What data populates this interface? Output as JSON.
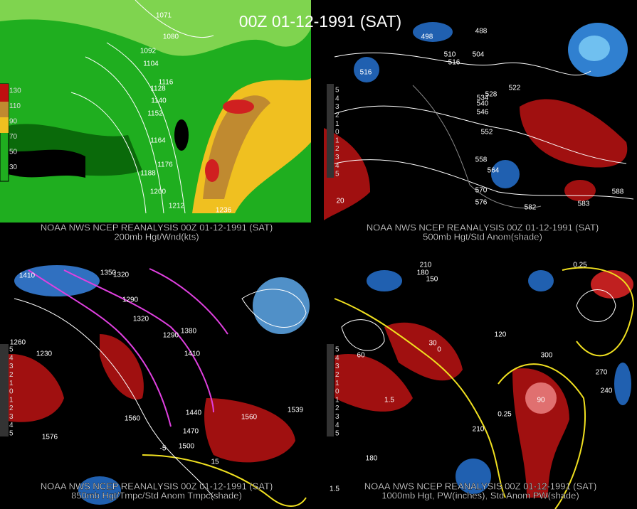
{
  "title": "00Z 01-12-1991 (SAT)",
  "panels": [
    {
      "caption": [
        "NOAA NWS NCEP REANALYSIS 00Z 01-12-1991 (SAT)",
        "200mb Hgt/Wnd(kts)"
      ],
      "legend": [
        "130",
        "110",
        "90",
        "70",
        "50",
        "30"
      ],
      "labels": [
        "1071",
        "1080",
        "1092",
        "1104",
        "1116",
        "1128",
        "1140",
        "1152",
        "1164",
        "1176",
        "1188",
        "1200",
        "1212",
        "1236"
      ]
    },
    {
      "caption": [
        "NOAA NWS NCEP REANALYSIS 00Z 01-12-1991 (SAT)",
        "500mb Hgt/Std Anom(shade)"
      ],
      "legend": [
        "5",
        "4",
        "3",
        "2",
        "1",
        "0",
        "1",
        "2",
        "3",
        "4",
        "5"
      ],
      "labels": [
        "498",
        "488",
        "510",
        "504",
        "516",
        "516",
        "522",
        "528",
        "534",
        "540",
        "546",
        "552",
        "558",
        "564",
        "570",
        "576",
        "582",
        "588",
        "583",
        "20"
      ]
    },
    {
      "caption": [
        "NOAA NWS NCEP REANALYSIS 00Z 01-12-1991 (SAT)",
        "850mb Hgt/Tmpc/Std Anom Tmpc(shade)"
      ],
      "legend": [
        "5",
        "4",
        "3",
        "2",
        "1",
        "0",
        "1",
        "2",
        "3",
        "4",
        "5"
      ],
      "labels": [
        "1410",
        "1350",
        "1320",
        "1290",
        "1320",
        "1380",
        "1290",
        "1260",
        "1230",
        "1410",
        "1440",
        "1470",
        "1500",
        "1560",
        "1560",
        "1539",
        "1576",
        "15",
        "-5"
      ]
    },
    {
      "caption": [
        "NOAA NWS NCEP REANALYSIS 00Z 01-12-1991 (SAT)",
        "1000mb Hgt, PW(inches), Std Anom PW(shade)"
      ],
      "legend": [
        "5",
        "4",
        "3",
        "2",
        "1",
        "0",
        "1",
        "2",
        "3",
        "4",
        "5"
      ],
      "labels": [
        "210",
        "180",
        "150",
        "120",
        "90",
        "60",
        "30",
        "0",
        "240",
        "270",
        "210",
        "180",
        "0.25",
        "0.25",
        "1.5",
        "1.5",
        "300"
      ]
    }
  ]
}
